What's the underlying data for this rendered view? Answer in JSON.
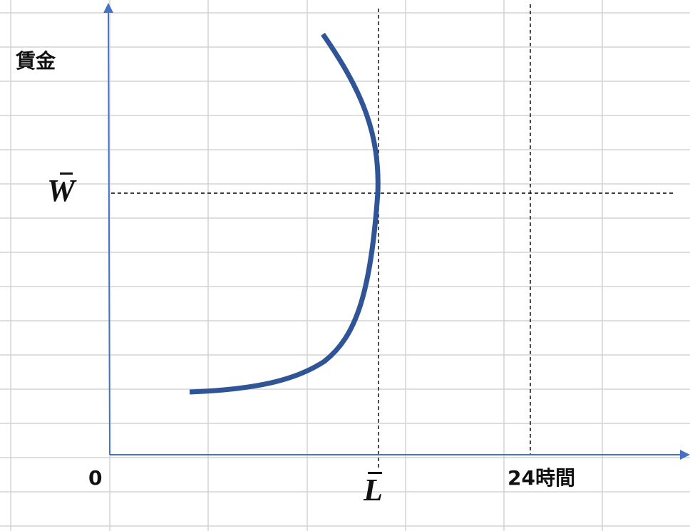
{
  "labels": {
    "y_axis": "賃金",
    "origin": "0",
    "x_max": "24時間",
    "w_bar": "W",
    "l_bar": "L"
  },
  "colors": {
    "axis": "#4472c4",
    "curve": "#2f5597",
    "grid": "#d4d4d4",
    "guide": "#000000"
  }
}
